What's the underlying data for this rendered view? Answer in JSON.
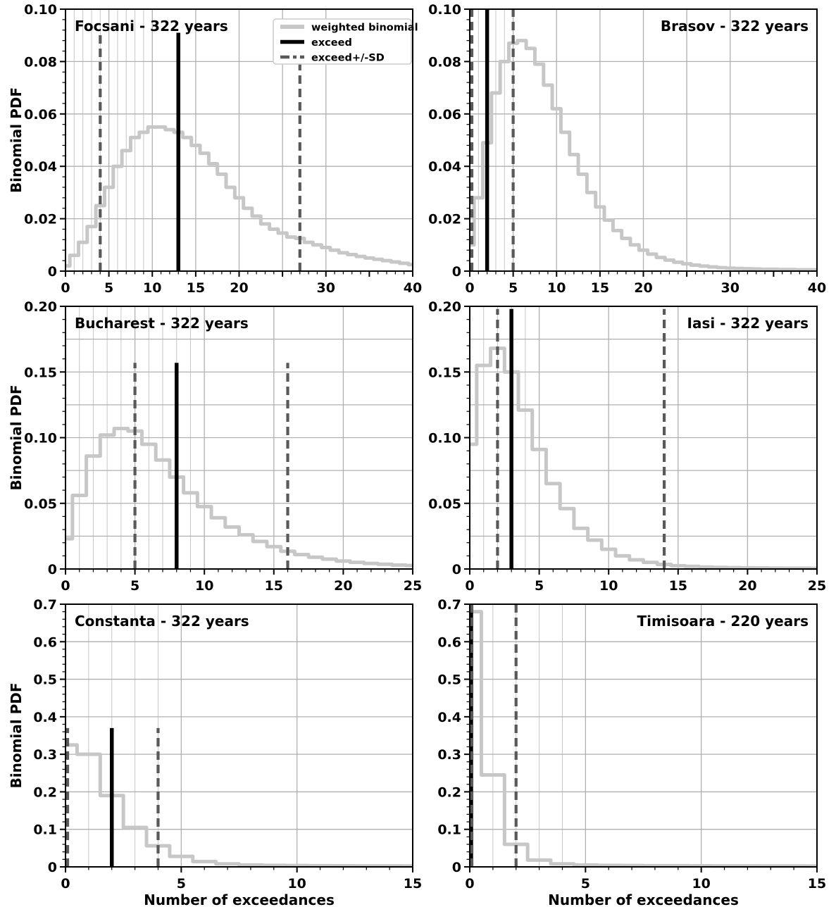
{
  "figure": {
    "y_axis_label": "Binomial PDF",
    "x_axis_label": "Number of exceedances",
    "legend": {
      "items": [
        {
          "label": "weighted binomial",
          "sample": "weighted-binomial"
        },
        {
          "label": "exceed",
          "sample": "exceed"
        },
        {
          "label": "exceed+/-SD",
          "sample": "exceed-sd"
        }
      ]
    },
    "colors": {
      "curve": "#c7c7c7",
      "exceed": "#000000",
      "sd_dashed": "#595959",
      "grid_major": "#b0b0b0",
      "grid_minor": "#c6c6c6",
      "border": "#000000",
      "legend_border": "#cccccc",
      "background": "#ffffff"
    }
  },
  "chart_data": [
    {
      "type": "step-line",
      "title": "Focsani - 322 years",
      "title_side": "left",
      "x_max": 40,
      "y_max": 0.1,
      "y_major_step": 0.02,
      "x_label_ticks": [
        {
          "v": 0,
          "t": "0"
        },
        {
          "v": 5,
          "t": "5"
        },
        {
          "v": 10,
          "t": "10"
        },
        {
          "v": 15,
          "t": "15"
        },
        {
          "v": 20,
          "t": "20"
        },
        {
          "v": 30,
          "t": "30"
        },
        {
          "v": 40,
          "t": "40"
        }
      ],
      "y_label_ticks": [
        {
          "v": 0,
          "t": "0"
        },
        {
          "v": 0.02,
          "t": "0.02"
        },
        {
          "v": 0.04,
          "t": "0.04"
        },
        {
          "v": 0.06,
          "t": "0.06"
        },
        {
          "v": 0.08,
          "t": "0.08"
        },
        {
          "v": 0.1,
          "t": "0.10"
        }
      ],
      "x_grid_major": [
        5,
        10,
        15,
        20,
        25,
        30
      ],
      "x_grid_minor": [
        1,
        2,
        3,
        4,
        6,
        7,
        8,
        9
      ],
      "y_grid": [
        0.02,
        0.04,
        0.06,
        0.08
      ],
      "values": [
        0.002,
        0.006,
        0.011,
        0.017,
        0.025,
        0.032,
        0.04,
        0.046,
        0.051,
        0.053,
        0.055,
        0.055,
        0.054,
        0.053,
        0.051,
        0.048,
        0.045,
        0.041,
        0.037,
        0.032,
        0.028,
        0.024,
        0.021,
        0.018,
        0.016,
        0.0145,
        0.013,
        0.0125,
        0.011,
        0.01,
        0.009,
        0.008,
        0.007,
        0.0063,
        0.0056,
        0.005,
        0.0045,
        0.004,
        0.0035,
        0.003,
        0.0025
      ],
      "exceed": 13,
      "sd": [
        4,
        27
      ],
      "line_top": 0.091,
      "show_y_axis_label": true,
      "show_x_axis_label": false,
      "show_legend": true
    },
    {
      "type": "step-line",
      "title": "Brasov - 322 years",
      "title_side": "right",
      "x_max": 40,
      "y_max": 0.1,
      "y_major_step": 0.02,
      "x_label_ticks": [
        {
          "v": 0,
          "t": "0"
        },
        {
          "v": 5,
          "t": "5"
        },
        {
          "v": 10,
          "t": "10"
        },
        {
          "v": 15,
          "t": "15"
        },
        {
          "v": 20,
          "t": "20"
        },
        {
          "v": 30,
          "t": "30"
        },
        {
          "v": 40,
          "t": "40"
        }
      ],
      "y_label_ticks": [
        {
          "v": 0,
          "t": "0"
        },
        {
          "v": 0.02,
          "t": "0.02"
        },
        {
          "v": 0.04,
          "t": "0.04"
        },
        {
          "v": 0.06,
          "t": "0.06"
        },
        {
          "v": 0.08,
          "t": "0.08"
        },
        {
          "v": 0.1,
          "t": "0.10"
        }
      ],
      "x_grid_major": [
        5,
        10,
        15,
        20,
        25,
        30
      ],
      "x_grid_minor": [
        1,
        2,
        3,
        4
      ],
      "y_grid": [
        0.02,
        0.04,
        0.06,
        0.08
      ],
      "values": [
        0.01,
        0.028,
        0.049,
        0.068,
        0.08,
        0.087,
        0.088,
        0.085,
        0.079,
        0.071,
        0.062,
        0.053,
        0.0445,
        0.037,
        0.03,
        0.0245,
        0.0195,
        0.0155,
        0.0125,
        0.01,
        0.008,
        0.0065,
        0.0052,
        0.0042,
        0.0034,
        0.0028,
        0.0023,
        0.0019,
        0.0016,
        0.0013,
        0.0011,
        0.001,
        0.0009,
        0.0008,
        0.0007,
        0.0007,
        0.0006,
        0.0006,
        0.0005,
        0.0005,
        0.0005
      ],
      "exceed": 2,
      "sd": [
        0,
        5
      ],
      "line_top": 0.1,
      "show_y_axis_label": false,
      "show_x_axis_label": false,
      "show_legend": false
    },
    {
      "type": "step-line",
      "title": "Bucharest - 322 years",
      "title_side": "left",
      "x_max": 25,
      "y_max": 0.2,
      "y_major_step": 0.05,
      "x_label_ticks": [
        {
          "v": 0,
          "t": "0"
        },
        {
          "v": 5,
          "t": "5"
        },
        {
          "v": 10,
          "t": "10"
        },
        {
          "v": 15,
          "t": "15"
        },
        {
          "v": 20,
          "t": "20"
        },
        {
          "v": 25,
          "t": "25"
        }
      ],
      "y_label_ticks": [
        {
          "v": 0,
          "t": "0"
        },
        {
          "v": 0.05,
          "t": "0.05"
        },
        {
          "v": 0.1,
          "t": "0.10"
        },
        {
          "v": 0.15,
          "t": "0.15"
        },
        {
          "v": 0.2,
          "t": "0.20"
        }
      ],
      "x_grid_major": [
        5,
        10,
        15,
        20
      ],
      "x_grid_minor": [
        1,
        2,
        3,
        4,
        6,
        7,
        8,
        9
      ],
      "y_grid": [
        0.025,
        0.05,
        0.075,
        0.1,
        0.125,
        0.15,
        0.175
      ],
      "values": [
        0.023,
        0.056,
        0.086,
        0.102,
        0.107,
        0.105,
        0.095,
        0.083,
        0.07,
        0.058,
        0.0475,
        0.039,
        0.032,
        0.026,
        0.021,
        0.017,
        0.0135,
        0.011,
        0.009,
        0.0075,
        0.006,
        0.005,
        0.0042,
        0.0036,
        0.003,
        0.0026
      ],
      "exceed": 8,
      "sd": [
        5,
        16
      ],
      "line_top": 0.157,
      "show_y_axis_label": true,
      "show_x_axis_label": false,
      "show_legend": false
    },
    {
      "type": "step-line",
      "title": "Iasi - 322 years",
      "title_side": "right",
      "x_max": 25,
      "y_max": 0.2,
      "y_major_step": 0.05,
      "x_label_ticks": [
        {
          "v": 0,
          "t": "0"
        },
        {
          "v": 5,
          "t": "5"
        },
        {
          "v": 10,
          "t": "10"
        },
        {
          "v": 15,
          "t": "15"
        },
        {
          "v": 20,
          "t": "20"
        },
        {
          "v": 25,
          "t": "25"
        }
      ],
      "y_label_ticks": [
        {
          "v": 0,
          "t": "0"
        },
        {
          "v": 0.05,
          "t": "0.05"
        },
        {
          "v": 0.1,
          "t": "0.10"
        },
        {
          "v": 0.15,
          "t": "0.15"
        },
        {
          "v": 0.2,
          "t": "0.20"
        }
      ],
      "x_grid_major": [
        5,
        10,
        15,
        20
      ],
      "x_grid_minor": [
        1,
        2,
        3,
        4
      ],
      "y_grid": [
        0.025,
        0.05,
        0.075,
        0.1,
        0.125,
        0.15,
        0.175
      ],
      "values": [
        0.095,
        0.155,
        0.168,
        0.15,
        0.121,
        0.091,
        0.065,
        0.046,
        0.031,
        0.022,
        0.015,
        0.01,
        0.007,
        0.005,
        0.0035,
        0.0025,
        0.002,
        0.0015,
        0.0012,
        0.001,
        0.0009,
        0.0008,
        0.0007,
        0.0006,
        0.0006,
        0.0005
      ],
      "exceed": 3,
      "sd": [
        2,
        14
      ],
      "line_top": 0.198,
      "show_y_axis_label": false,
      "show_x_axis_label": false,
      "show_legend": false
    },
    {
      "type": "step-line",
      "title": "Constanta - 322 years",
      "title_side": "left",
      "x_max": 15,
      "y_max": 0.7,
      "y_major_step": 0.1,
      "x_label_ticks": [
        {
          "v": 0,
          "t": "0"
        },
        {
          "v": 5,
          "t": "5"
        },
        {
          "v": 10,
          "t": "10"
        },
        {
          "v": 15,
          "t": "15"
        }
      ],
      "y_label_ticks": [
        {
          "v": 0,
          "t": "0"
        },
        {
          "v": 0.1,
          "t": "0.1"
        },
        {
          "v": 0.2,
          "t": "0.2"
        },
        {
          "v": 0.3,
          "t": "0.3"
        },
        {
          "v": 0.4,
          "t": "0.4"
        },
        {
          "v": 0.5,
          "t": "0.5"
        },
        {
          "v": 0.6,
          "t": "0.6"
        },
        {
          "v": 0.7,
          "t": "0.7"
        }
      ],
      "x_grid_major": [
        5,
        10
      ],
      "x_grid_minor": [
        1,
        2,
        3,
        4
      ],
      "y_grid": [
        0.1,
        0.2,
        0.3,
        0.4,
        0.5,
        0.6
      ],
      "values": [
        0.325,
        0.3,
        0.19,
        0.105,
        0.056,
        0.028,
        0.014,
        0.008,
        0.005,
        0.004,
        0.0035,
        0.003,
        0.0028,
        0.0026,
        0.0025,
        0.0024
      ],
      "exceed": 2,
      "sd": [
        0,
        4
      ],
      "line_top": 0.37,
      "show_y_axis_label": true,
      "show_x_axis_label": true,
      "show_legend": false
    },
    {
      "type": "step-line",
      "title": "Timisoara - 220 years",
      "title_side": "right",
      "x_max": 15,
      "y_max": 0.7,
      "y_major_step": 0.1,
      "x_label_ticks": [
        {
          "v": 0,
          "t": "0"
        },
        {
          "v": 5,
          "t": "5"
        },
        {
          "v": 10,
          "t": "10"
        },
        {
          "v": 15,
          "t": "15"
        }
      ],
      "y_label_ticks": [
        {
          "v": 0,
          "t": "0"
        },
        {
          "v": 0.1,
          "t": "0.1"
        },
        {
          "v": 0.2,
          "t": "0.2"
        },
        {
          "v": 0.3,
          "t": "0.3"
        },
        {
          "v": 0.4,
          "t": "0.4"
        },
        {
          "v": 0.5,
          "t": "0.5"
        },
        {
          "v": 0.6,
          "t": "0.6"
        },
        {
          "v": 0.7,
          "t": "0.7"
        }
      ],
      "x_grid_major": [
        5,
        10
      ],
      "x_grid_minor": [
        1,
        2,
        3,
        4
      ],
      "y_grid": [
        0.1,
        0.2,
        0.3,
        0.4,
        0.5,
        0.6
      ],
      "values": [
        0.68,
        0.245,
        0.06,
        0.018,
        0.008,
        0.005,
        0.004,
        0.0035,
        0.003,
        0.003,
        0.0028,
        0.0026,
        0.0025,
        0.0024,
        0.0023,
        0.0022
      ],
      "exceed": 0,
      "sd": [
        0,
        2
      ],
      "line_top": 0.7,
      "show_y_axis_label": false,
      "show_x_axis_label": true,
      "show_legend": false
    }
  ]
}
